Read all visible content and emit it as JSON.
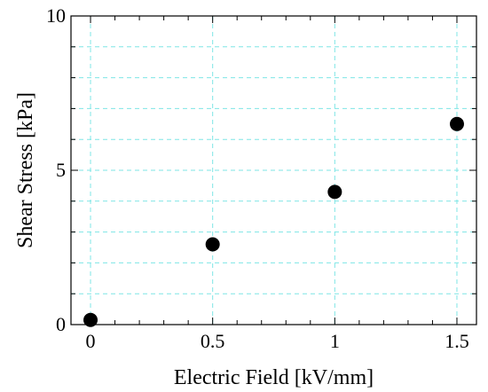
{
  "chart_data": {
    "type": "scatter",
    "title": "",
    "xlabel": "Electric Field [kV/mm]",
    "ylabel": "Shear Stress [kPa]",
    "xlim": [
      -0.08,
      1.58
    ],
    "ylim": [
      0,
      10
    ],
    "x_ticks": [
      0,
      0.5,
      1,
      1.5
    ],
    "x_tick_labels": [
      "0",
      "0.5",
      "1",
      "1.5"
    ],
    "y_ticks": [
      0,
      5,
      10
    ],
    "y_tick_labels": [
      "0",
      "5",
      "10"
    ],
    "grid": true,
    "grid_color": "#7ee6e6",
    "marker_color": "#000000",
    "series": [
      {
        "x": [
          0,
          0.5,
          1.0,
          1.5
        ],
        "y": [
          0.15,
          2.6,
          4.3,
          6.5
        ]
      }
    ]
  }
}
